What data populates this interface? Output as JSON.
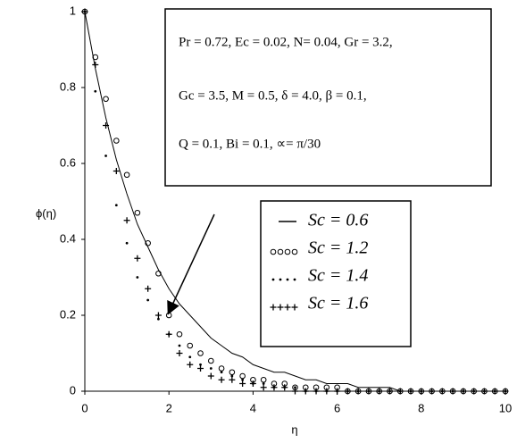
{
  "chart_data": {
    "type": "line",
    "x_label": "η",
    "y_label": "ϕ(η)",
    "annotations": [
      "Pr = 0.72, Ec = 0.02, N= 0.04, Gr = 3.2,",
      "Gc = 3.5, M = 0.5, δ = 4.0, β = 0.1,",
      "Q = 0.1, Bi = 0.1, ∝= π/30"
    ],
    "x": [
      0,
      0.25,
      0.5,
      0.75,
      1,
      1.25,
      1.5,
      1.75,
      2,
      2.25,
      2.5,
      2.75,
      3,
      3.25,
      3.5,
      3.75,
      4,
      4.25,
      4.5,
      4.75,
      5,
      5.25,
      5.5,
      5.75,
      6,
      6.25,
      6.5,
      6.75,
      7,
      7.25,
      7.5,
      7.75,
      8,
      8.25,
      8.5,
      8.75,
      9,
      9.25,
      9.5,
      9.75,
      10
    ],
    "series": [
      {
        "name": "Sc = 0.6",
        "color": "#000000",
        "marker": "line",
        "values": [
          1,
          0.85,
          0.72,
          0.61,
          0.52,
          0.44,
          0.38,
          0.32,
          0.27,
          0.23,
          0.2,
          0.17,
          0.14,
          0.12,
          0.1,
          0.09,
          0.07,
          0.06,
          0.05,
          0.05,
          0.04,
          0.03,
          0.03,
          0.02,
          0.02,
          0.02,
          0.01,
          0.01,
          0.01,
          0.01,
          0,
          0,
          0,
          0,
          0,
          0,
          0,
          0,
          0,
          0,
          0
        ]
      },
      {
        "name": "Sc = 1.2",
        "color": "#000000",
        "marker": "circle",
        "values": [
          1,
          0.88,
          0.77,
          0.66,
          0.57,
          0.47,
          0.39,
          0.31,
          0.2,
          0.15,
          0.12,
          0.1,
          0.08,
          0.06,
          0.05,
          0.04,
          0.03,
          0.03,
          0.02,
          0.02,
          0.01,
          0.01,
          0.01,
          0.01,
          0.01,
          0,
          0,
          0,
          0,
          0,
          0,
          0,
          0,
          0,
          0,
          0,
          0,
          0,
          0,
          0,
          0
        ]
      },
      {
        "name": "Sc = 1.4",
        "color": "#000000",
        "marker": "dot",
        "values": [
          1,
          0.79,
          0.62,
          0.49,
          0.39,
          0.3,
          0.24,
          0.19,
          0.15,
          0.12,
          0.09,
          0.07,
          0.06,
          0.05,
          0.04,
          0.03,
          0.02,
          0.02,
          0.01,
          0.01,
          0.01,
          0,
          0,
          0,
          0,
          0,
          0,
          0,
          0,
          0,
          0,
          0,
          0,
          0,
          0,
          0,
          0,
          0,
          0,
          0,
          0
        ]
      },
      {
        "name": "Sc = 1.6",
        "color": "#000000",
        "marker": "plus",
        "values": [
          1,
          0.86,
          0.7,
          0.58,
          0.45,
          0.35,
          0.27,
          0.2,
          0.15,
          0.1,
          0.07,
          0.06,
          0.04,
          0.03,
          0.03,
          0.02,
          0.02,
          0.01,
          0.01,
          0.01,
          0,
          0,
          0,
          0,
          0,
          0,
          0,
          0,
          0,
          0,
          0,
          0,
          0,
          0,
          0,
          0,
          0,
          0,
          0,
          0,
          0
        ]
      }
    ],
    "xlim": [
      0,
      10
    ],
    "ylim": [
      0,
      1
    ],
    "xticks": [
      0,
      2,
      4,
      6,
      8,
      10
    ],
    "yticks": [
      0,
      0.2,
      0.4,
      0.6,
      0.8,
      1
    ]
  }
}
